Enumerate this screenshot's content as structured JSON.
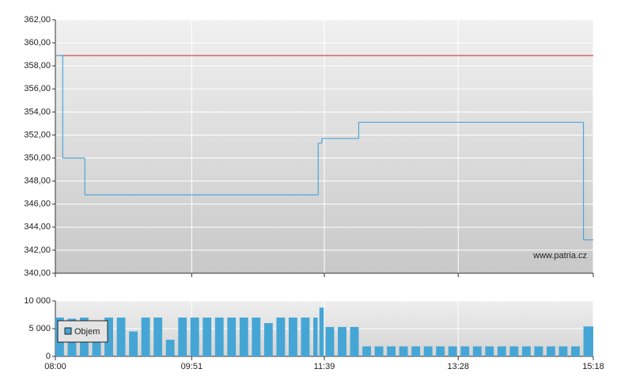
{
  "chart_data": [
    {
      "type": "line",
      "watermark": "www.patria.cz",
      "x": [
        "08:00",
        "08:06",
        "08:24",
        "11:34",
        "11:37",
        "12:07",
        "15:10"
      ],
      "values": [
        358.9,
        350.0,
        346.8,
        351.3,
        351.7,
        353.1,
        342.9
      ],
      "color": "#4ea6d6",
      "reference_line": {
        "value": 358.9,
        "color": "#cc2222"
      },
      "xlim": [
        "08:00",
        "15:18"
      ],
      "xticks": [
        "08:00",
        "09:51",
        "11:39",
        "13:28",
        "15:18"
      ],
      "ylim": [
        340,
        362
      ],
      "yticks": [
        {
          "value": 340,
          "label": "340,00"
        },
        {
          "value": 342,
          "label": "342,00"
        },
        {
          "value": 344,
          "label": "344,00"
        },
        {
          "value": 346,
          "label": "346,00"
        },
        {
          "value": 348,
          "label": "348,00"
        },
        {
          "value": 350,
          "label": "350,00"
        },
        {
          "value": 352,
          "label": "352,00"
        },
        {
          "value": 354,
          "label": "354,00"
        },
        {
          "value": 356,
          "label": "356,00"
        },
        {
          "value": 358,
          "label": "358,00"
        },
        {
          "value": 360,
          "label": "360,00"
        },
        {
          "value": 362,
          "label": "362,00"
        }
      ],
      "grid": true
    },
    {
      "type": "bar",
      "x": [
        "08:00",
        "08:10",
        "08:20",
        "08:30",
        "08:40",
        "08:50",
        "09:00",
        "09:10",
        "09:20",
        "09:30",
        "09:40",
        "09:50",
        "10:00",
        "10:10",
        "10:20",
        "10:30",
        "10:40",
        "10:50",
        "11:00",
        "11:10",
        "11:20",
        "11:30",
        "11:35",
        "11:40",
        "11:50",
        "12:00",
        "12:10",
        "12:20",
        "12:30",
        "12:40",
        "12:50",
        "13:00",
        "13:10",
        "13:20",
        "13:30",
        "13:40",
        "13:50",
        "14:00",
        "14:10",
        "14:20",
        "14:30",
        "14:40",
        "14:50",
        "15:00",
        "15:10"
      ],
      "series": [
        {
          "name": "Objem",
          "color": "#45a6d5",
          "values": [
            7000,
            6800,
            7000,
            2500,
            7000,
            7000,
            4500,
            7000,
            7000,
            3000,
            7000,
            7000,
            7000,
            7000,
            7000,
            7000,
            7000,
            6000,
            7000,
            7000,
            7000,
            7000,
            8800,
            5300,
            5300,
            5300,
            1800,
            1800,
            1800,
            1800,
            1800,
            1800,
            1800,
            1800,
            1800,
            1800,
            1800,
            1800,
            1800,
            1800,
            1800,
            1800,
            1800,
            1800,
            5400
          ]
        }
      ],
      "xlim": [
        "08:00",
        "15:18"
      ],
      "xticks": [
        "08:00",
        "09:51",
        "11:39",
        "13:28",
        "15:18"
      ],
      "ylim": [
        0,
        10000
      ],
      "yticks": [
        0,
        {
          "value": 5000,
          "label": "5 000"
        },
        {
          "value": 10000,
          "label": "10 000"
        }
      ],
      "grid": true
    }
  ]
}
